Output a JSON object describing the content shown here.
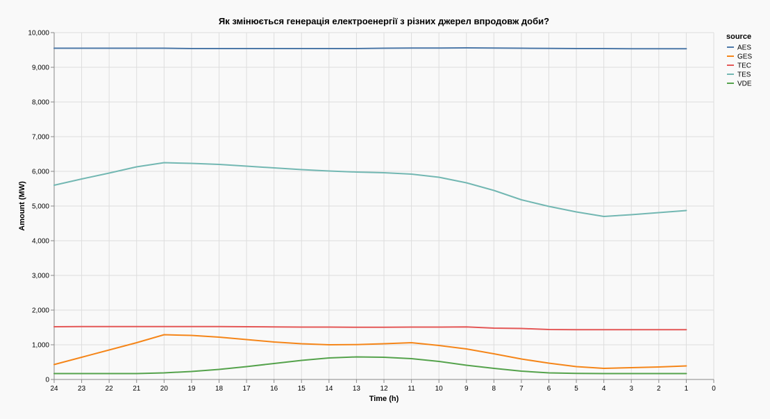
{
  "chart_data": {
    "type": "line",
    "title": "Як змінюється генерація електроенергії з різних джерел впродовж доби?",
    "xlabel": "Time (h)",
    "ylabel": "Amount (MW)",
    "x": [
      24,
      23,
      22,
      21,
      20,
      19,
      18,
      17,
      16,
      15,
      14,
      13,
      12,
      11,
      10,
      9,
      8,
      7,
      6,
      5,
      4,
      3,
      2,
      1
    ],
    "x_ticks": [
      "24",
      "23",
      "22",
      "21",
      "20",
      "19",
      "18",
      "17",
      "16",
      "15",
      "14",
      "13",
      "12",
      "11",
      "10",
      "9",
      "8",
      "7",
      "6",
      "5",
      "4",
      "3",
      "2",
      "1",
      "0"
    ],
    "x_tick_values": [
      24,
      23,
      22,
      21,
      20,
      19,
      18,
      17,
      16,
      15,
      14,
      13,
      12,
      11,
      10,
      9,
      8,
      7,
      6,
      5,
      4,
      3,
      2,
      1,
      0
    ],
    "xlim": [
      24,
      0
    ],
    "x_reversed": true,
    "ylim": [
      0,
      10000
    ],
    "y_ticks": [
      "0",
      "1,000",
      "2,000",
      "3,000",
      "4,000",
      "5,000",
      "6,000",
      "7,000",
      "8,000",
      "9,000",
      "10,000"
    ],
    "y_tick_values": [
      0,
      1000,
      2000,
      3000,
      4000,
      5000,
      6000,
      7000,
      8000,
      9000,
      10000
    ],
    "grid": true,
    "legend": {
      "title": "source",
      "position": "right"
    },
    "series": [
      {
        "name": "AES",
        "color": "#4c78a8",
        "values": [
          9550,
          9550,
          9550,
          9550,
          9550,
          9540,
          9540,
          9540,
          9540,
          9540,
          9540,
          9540,
          9550,
          9555,
          9555,
          9560,
          9555,
          9550,
          9545,
          9540,
          9540,
          9535,
          9535,
          9535
        ]
      },
      {
        "name": "GES",
        "color": "#f58518",
        "values": [
          430,
          640,
          850,
          1060,
          1290,
          1270,
          1220,
          1150,
          1080,
          1030,
          1000,
          1005,
          1030,
          1060,
          980,
          880,
          740,
          590,
          470,
          370,
          320,
          340,
          360,
          390
        ]
      },
      {
        "name": "TEC",
        "color": "#e45756",
        "values": [
          1520,
          1525,
          1525,
          1525,
          1525,
          1525,
          1525,
          1520,
          1515,
          1510,
          1510,
          1505,
          1505,
          1510,
          1510,
          1515,
          1480,
          1470,
          1440,
          1435,
          1435,
          1435,
          1435,
          1435
        ]
      },
      {
        "name": "TES",
        "color": "#72b7b2",
        "values": [
          5600,
          5780,
          5950,
          6130,
          6250,
          6230,
          6200,
          6150,
          6100,
          6050,
          6010,
          5980,
          5960,
          5920,
          5830,
          5670,
          5450,
          5180,
          4990,
          4830,
          4700,
          4750,
          4810,
          4870
        ]
      },
      {
        "name": "VDE",
        "color": "#54a24b",
        "values": [
          170,
          170,
          170,
          170,
          190,
          230,
          290,
          370,
          460,
          550,
          620,
          650,
          640,
          600,
          520,
          410,
          320,
          240,
          190,
          175,
          170,
          170,
          170,
          170
        ]
      }
    ]
  }
}
